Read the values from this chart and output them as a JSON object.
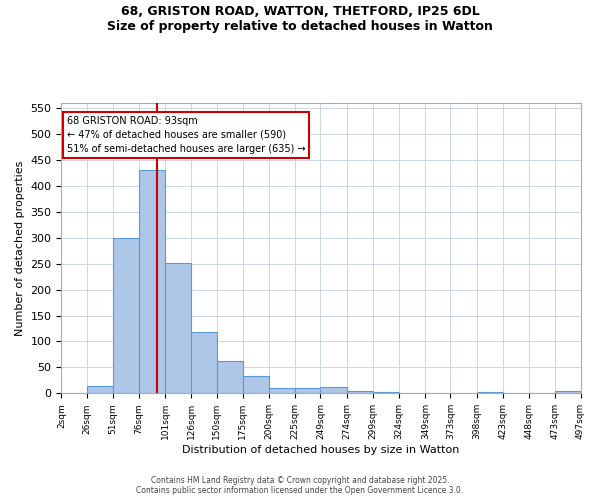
{
  "title_line1": "68, GRISTON ROAD, WATTON, THETFORD, IP25 6DL",
  "title_line2": "Size of property relative to detached houses in Watton",
  "xlabel": "Distribution of detached houses by size in Watton",
  "ylabel": "Number of detached properties",
  "bin_edges": [
    2,
    26,
    51,
    76,
    101,
    126,
    150,
    175,
    200,
    225,
    249,
    274,
    299,
    324,
    349,
    373,
    398,
    423,
    448,
    473,
    497
  ],
  "bar_heights": [
    0,
    15,
    300,
    430,
    252,
    118,
    63,
    33,
    10,
    10,
    12,
    5,
    3,
    0,
    0,
    0,
    3,
    0,
    0,
    5
  ],
  "bar_color": "#aec6e8",
  "bar_edge_color": "#5b9bd5",
  "property_size": 93,
  "vline_color": "#cc0000",
  "annotation_text": "68 GRISTON ROAD: 93sqm\n← 47% of detached houses are smaller (590)\n51% of semi-detached houses are larger (635) →",
  "annotation_box_color": "#ffffff",
  "annotation_box_edge": "#cc0000",
  "ylim": [
    0,
    560
  ],
  "yticks": [
    0,
    50,
    100,
    150,
    200,
    250,
    300,
    350,
    400,
    450,
    500,
    550
  ],
  "tick_labels": [
    "2sqm",
    "26sqm",
    "51sqm",
    "76sqm",
    "101sqm",
    "126sqm",
    "150sqm",
    "175sqm",
    "200sqm",
    "225sqm",
    "249sqm",
    "274sqm",
    "299sqm",
    "324sqm",
    "349sqm",
    "373sqm",
    "398sqm",
    "423sqm",
    "448sqm",
    "473sqm",
    "497sqm"
  ],
  "footer_line1": "Contains HM Land Registry data © Crown copyright and database right 2025.",
  "footer_line2": "Contains public sector information licensed under the Open Government Licence 3.0.",
  "background_color": "#ffffff",
  "grid_color": "#c8d8e8"
}
